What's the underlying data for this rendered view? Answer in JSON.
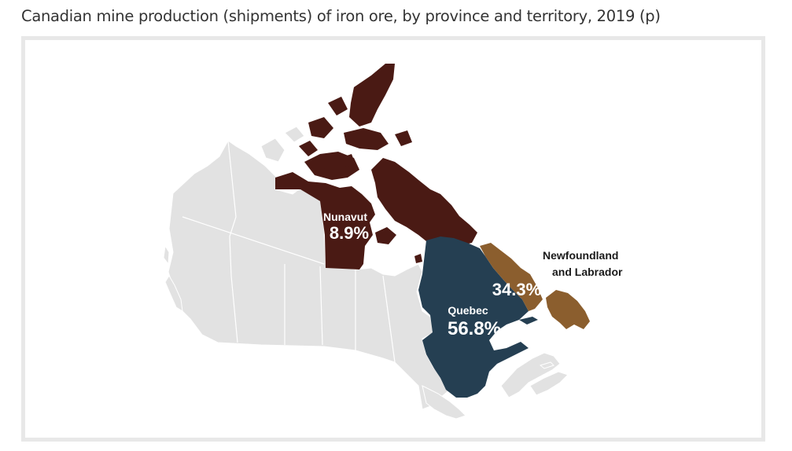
{
  "title": "Canadian mine production (shipments) of iron ore, by province and territory, 2019 (p)",
  "regions": [
    {
      "key": "nunavut",
      "name": "Nunavut",
      "share": "8.9%",
      "color": "#4a1a14"
    },
    {
      "key": "quebec",
      "name": "Quebec",
      "share": "56.8%",
      "color": "#253f52"
    },
    {
      "key": "nl",
      "name_line1": "Newfoundland",
      "name_line2": "and Labrador",
      "share": "34.3%",
      "color": "#8b5e2e"
    }
  ],
  "base_color": "#e2e2e2"
}
